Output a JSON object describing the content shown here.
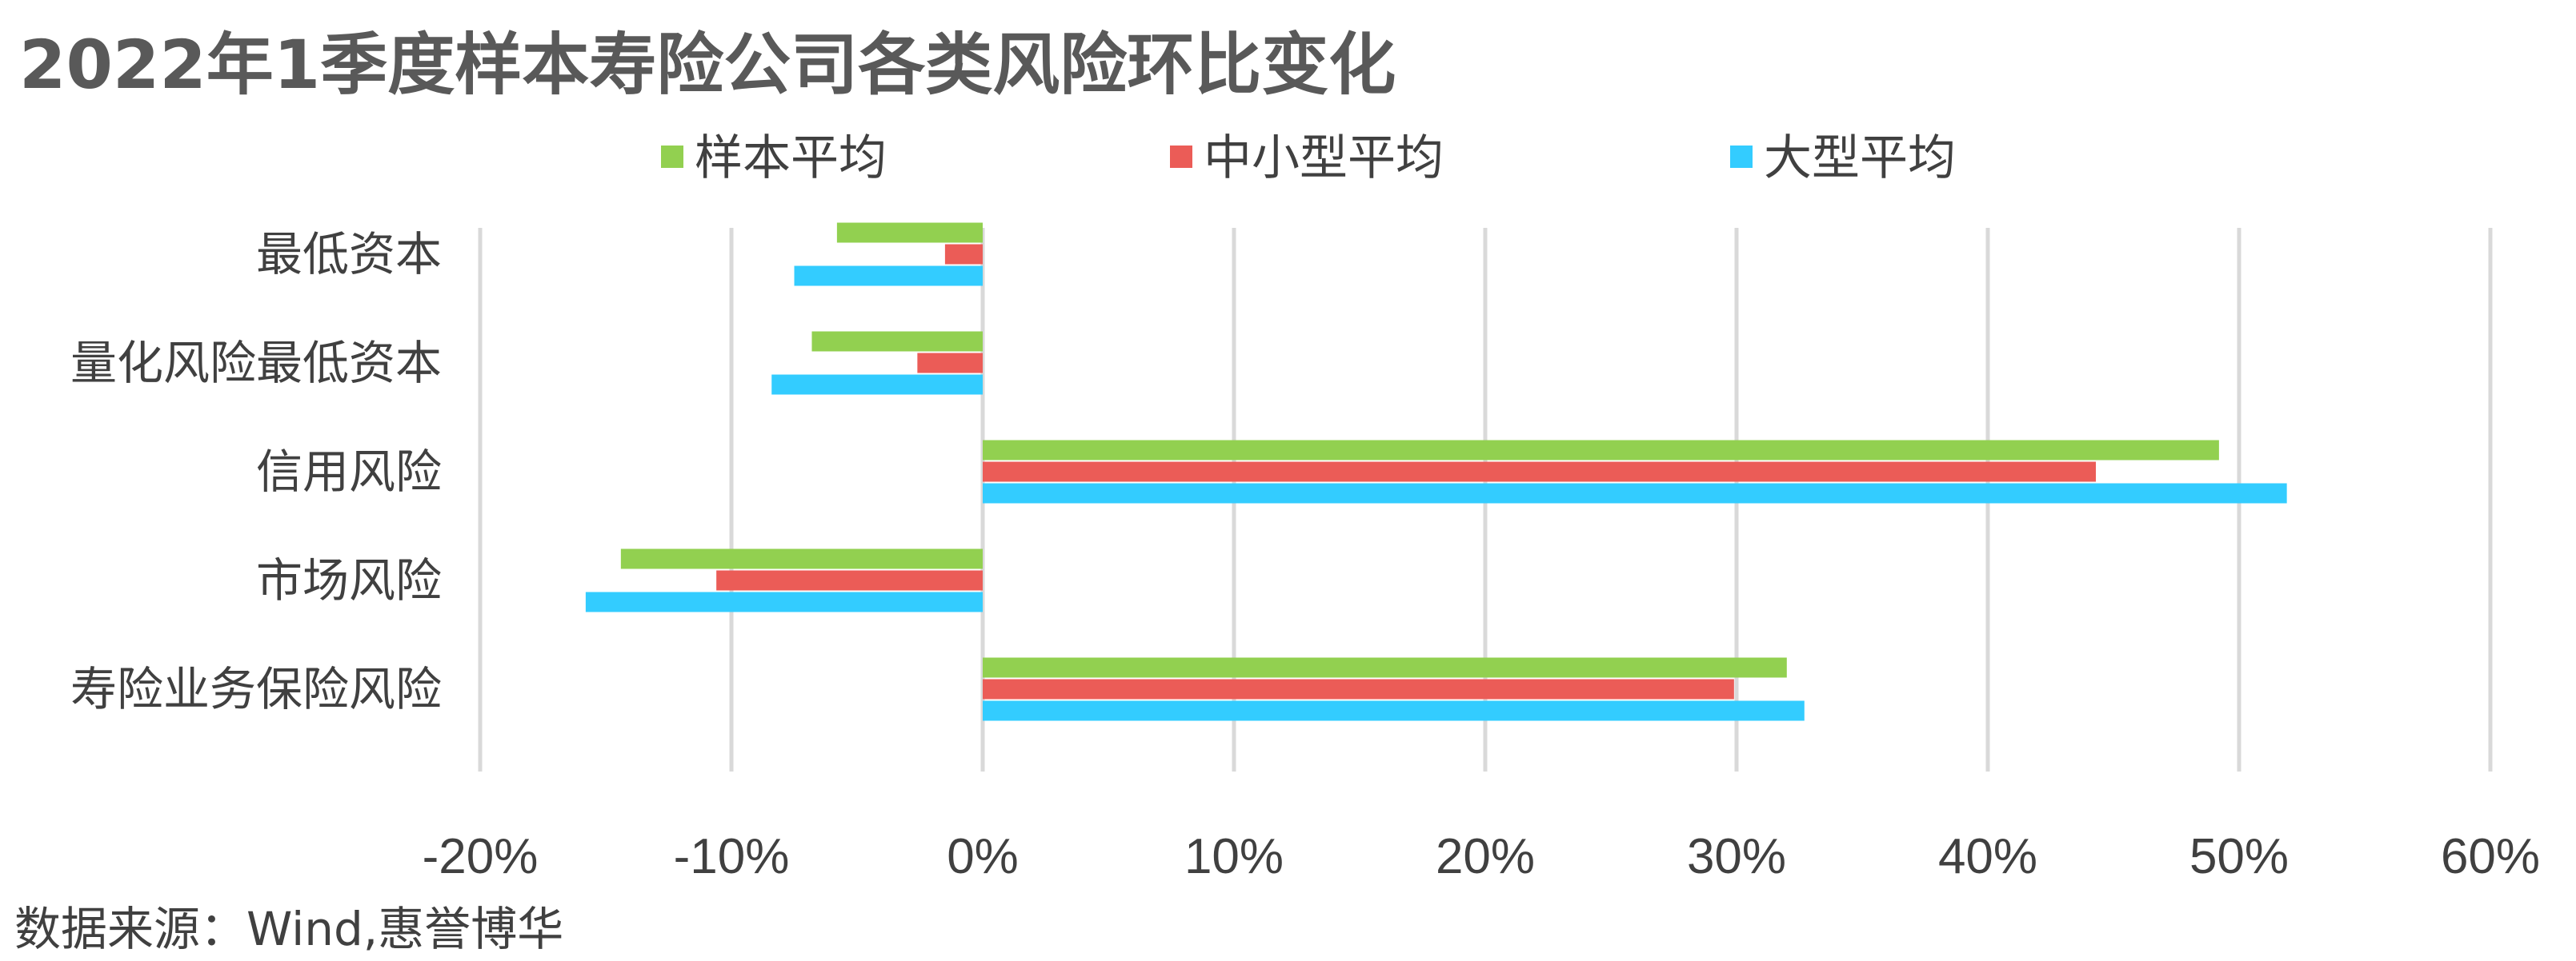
{
  "source": "数据来源：Wind,惠誉博华",
  "chart_data": {
    "type": "bar",
    "orientation": "horizontal",
    "title": "2022年1季度样本寿险公司各类风险环比变化",
    "categories": [
      "最低资本",
      "量化风险最低资本",
      "信用风险",
      "市场风险",
      "寿险业务保险风险"
    ],
    "series": [
      {
        "name": "样本平均",
        "color": "#92d050",
        "values": [
          -5.8,
          -6.8,
          49.2,
          -14.4,
          32.0
        ]
      },
      {
        "name": "中小型平均",
        "color": "#eb5c57",
        "values": [
          -1.5,
          -2.6,
          44.3,
          -10.6,
          29.9
        ]
      },
      {
        "name": "大型平均",
        "color": "#33ccff",
        "values": [
          -7.5,
          -8.4,
          51.9,
          -15.8,
          32.7
        ]
      }
    ],
    "xlim": [
      -20,
      60
    ],
    "xticks": [
      -20,
      -10,
      0,
      10,
      20,
      30,
      40,
      50,
      60
    ],
    "xtick_labels": [
      "-20%",
      "-10%",
      "0%",
      "10%",
      "20%",
      "30%",
      "40%",
      "50%",
      "60%"
    ],
    "grid": "vertical",
    "legend": "top"
  }
}
